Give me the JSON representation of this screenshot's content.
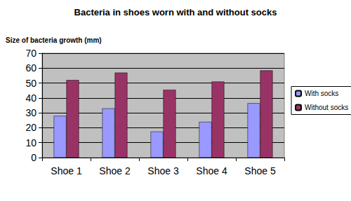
{
  "chart_data": {
    "type": "bar",
    "title": "Bacteria in shoes worn with and without socks",
    "y_label": "Size of bacteria growth (mm)",
    "categories": [
      "Shoe 1",
      "Shoe 2",
      "Shoe 3",
      "Shoe 4",
      "Shoe 5"
    ],
    "series": [
      {
        "name": "With socks",
        "color": "#9999ff",
        "values": [
          28,
          33,
          17.5,
          24,
          36.5
        ]
      },
      {
        "name": "Without socks",
        "color": "#993366",
        "values": [
          52,
          57,
          45.5,
          51,
          58.5
        ]
      }
    ],
    "ylim": [
      0,
      70
    ],
    "yticks": [
      0,
      10,
      20,
      30,
      40,
      50,
      60,
      70
    ],
    "grid": true,
    "legend": "right"
  }
}
